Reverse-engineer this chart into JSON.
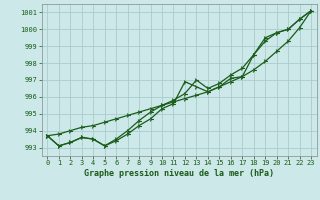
{
  "title": "Graphe pression niveau de la mer (hPa)",
  "background_color": "#cce8e8",
  "grid_color": "#aacccc",
  "line_color": "#1a5c1a",
  "marker_color": "#1a5c1a",
  "x_values": [
    0,
    1,
    2,
    3,
    4,
    5,
    6,
    7,
    8,
    9,
    10,
    11,
    12,
    13,
    14,
    15,
    16,
    17,
    18,
    19,
    20,
    21,
    22,
    23
  ],
  "series_straight": [
    993.7,
    993.8,
    994.0,
    994.2,
    994.3,
    994.5,
    994.7,
    994.9,
    995.1,
    995.3,
    995.5,
    995.7,
    995.9,
    996.1,
    996.3,
    996.6,
    996.9,
    997.2,
    997.6,
    998.1,
    998.7,
    999.3,
    1000.1,
    1001.1
  ],
  "series_mid": [
    993.7,
    993.1,
    993.3,
    993.6,
    993.5,
    993.1,
    993.5,
    994.0,
    994.6,
    995.1,
    995.5,
    995.8,
    996.2,
    997.0,
    996.5,
    996.8,
    997.3,
    997.7,
    998.5,
    999.3,
    999.8,
    1000.0,
    1000.6,
    1001.1
  ],
  "series_dip": [
    993.7,
    993.1,
    993.3,
    993.6,
    993.5,
    993.1,
    993.4,
    993.8,
    994.3,
    994.7,
    995.3,
    995.6,
    996.9,
    996.6,
    996.3,
    996.6,
    997.1,
    997.2,
    998.5,
    999.5,
    999.8,
    1000.0,
    1000.6,
    1001.1
  ],
  "ylim": [
    992.5,
    1001.5
  ],
  "yticks": [
    993,
    994,
    995,
    996,
    997,
    998,
    999,
    1000,
    1001
  ],
  "xlim": [
    -0.5,
    23.5
  ],
  "xticks": [
    0,
    1,
    2,
    3,
    4,
    5,
    6,
    7,
    8,
    9,
    10,
    11,
    12,
    13,
    14,
    15,
    16,
    17,
    18,
    19,
    20,
    21,
    22,
    23
  ]
}
